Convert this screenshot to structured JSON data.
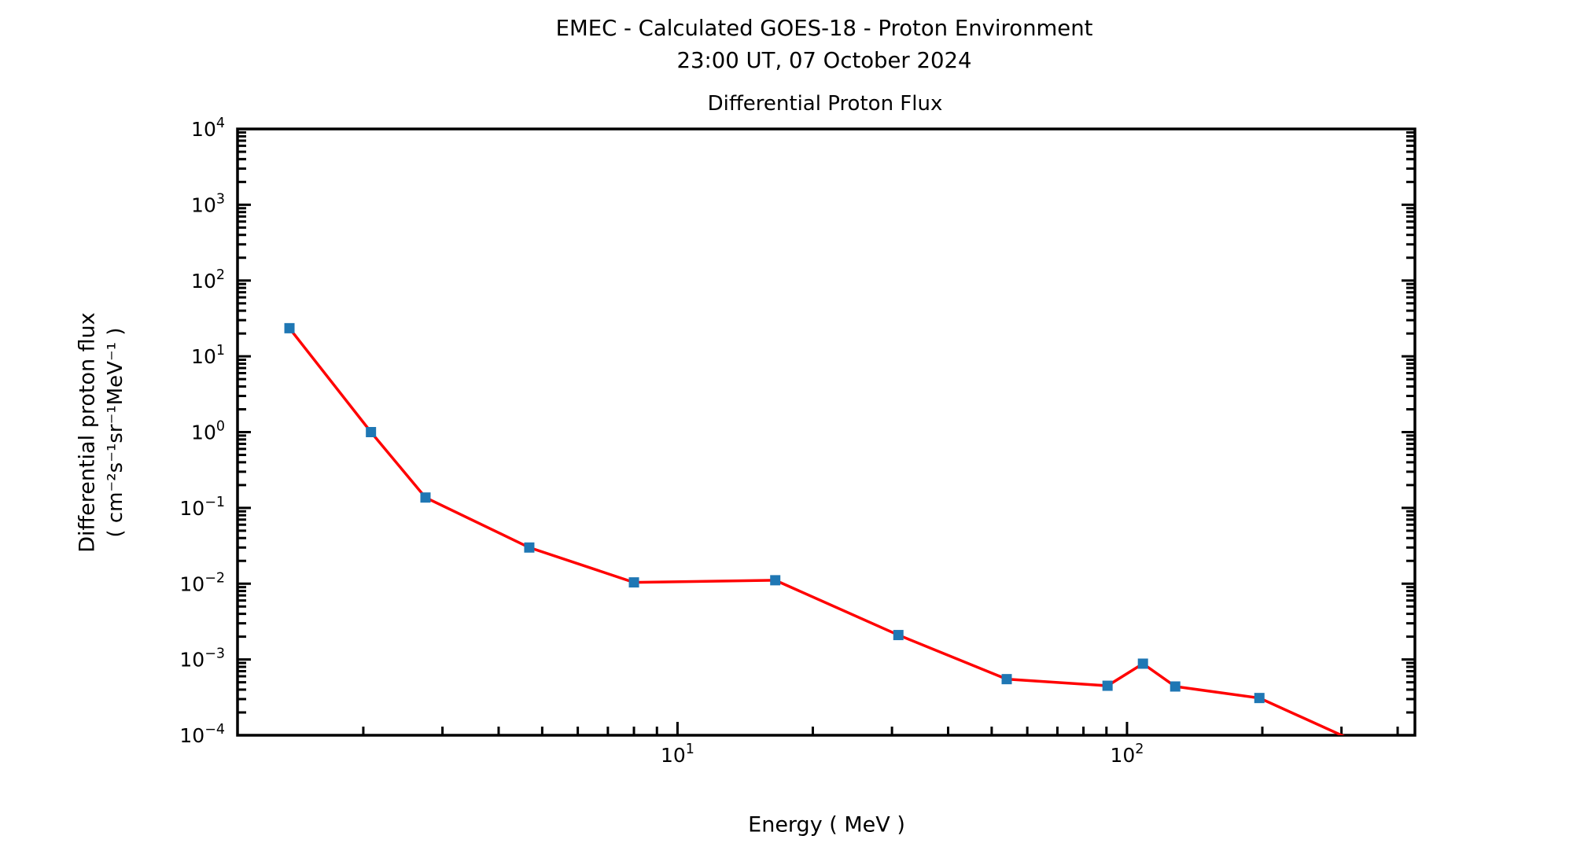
{
  "header": {
    "title_line1": "EMEC - Calculated GOES-18 - Proton Environment",
    "title_line2": "23:00 UT, 07 October 2024"
  },
  "chart_data": {
    "type": "line",
    "title": "Differential Proton Flux",
    "xlabel": "Energy ( MeV )",
    "ylabel_line1": "Differential proton flux",
    "ylabel_line2": "( cm⁻²s⁻¹sr⁻¹MeV⁻¹ )",
    "x_scale": "log",
    "y_scale": "log",
    "xlim": [
      1.05,
      437
    ],
    "ylim": [
      0.0001,
      10000
    ],
    "x_major_tick_exponents": [
      1,
      2
    ],
    "y_major_tick_exponents": [
      4,
      3,
      2,
      1,
      0,
      -1,
      -2,
      -3,
      -4
    ],
    "grid": false,
    "legend": false,
    "colors": {
      "line": "#ff0000",
      "marker": "#1f77b4",
      "axis": "#000000",
      "background": "#ffffff"
    },
    "marker_shape": "square",
    "series": [
      {
        "name": "differential proton flux",
        "x": [
          1.37,
          2.08,
          2.75,
          4.68,
          8.0,
          16.5,
          31,
          54,
          90.5,
          108.5,
          128,
          197,
          334
        ],
        "y": [
          23.5,
          1.0,
          0.137,
          0.03,
          0.0104,
          0.0111,
          0.0021,
          0.00055,
          0.00045,
          0.00088,
          0.00044,
          0.00031,
          7.5e-05
        ]
      }
    ]
  }
}
